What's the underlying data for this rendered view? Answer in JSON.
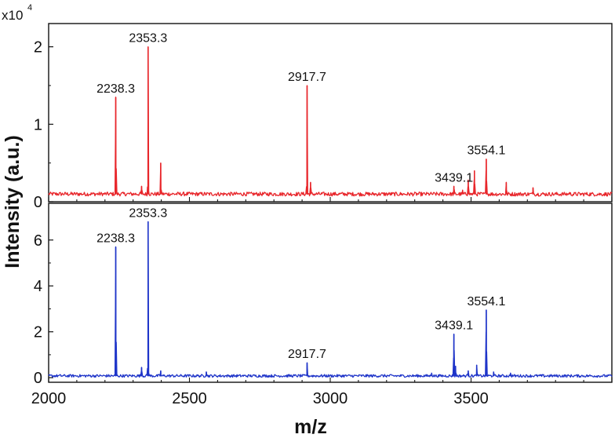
{
  "chart_data": {
    "type": "line",
    "xlabel": "m/z",
    "ylabel": "Intensity (a.u.)",
    "y_multiplier": {
      "base": "x10",
      "exponent": "4"
    },
    "xlim": [
      2000,
      4000
    ],
    "x_ticks": [
      2000,
      2500,
      3000,
      3500
    ],
    "x_tick_labels": [
      "2000",
      "2500",
      "3000",
      "3500"
    ],
    "grid": false,
    "panels": [
      {
        "name": "top",
        "color": "#e8262b",
        "ylim": [
          0,
          2.3
        ],
        "y_ticks": [
          0,
          1,
          2
        ],
        "y_tick_labels": [
          "0",
          "1",
          "2"
        ],
        "baseline": 0.1,
        "noise": 0.025,
        "peaks": [
          {
            "x": 2238.3,
            "y": 1.35
          },
          {
            "x": 2353.3,
            "y": 2.0
          },
          {
            "x": 2330,
            "y": 0.2
          },
          {
            "x": 2398,
            "y": 0.5
          },
          {
            "x": 2917.7,
            "y": 1.5
          },
          {
            "x": 2930,
            "y": 0.25
          },
          {
            "x": 3439.1,
            "y": 0.2
          },
          {
            "x": 3470,
            "y": 0.15
          },
          {
            "x": 3490,
            "y": 0.28
          },
          {
            "x": 3512,
            "y": 0.4
          },
          {
            "x": 3554.1,
            "y": 0.55
          },
          {
            "x": 3625,
            "y": 0.25
          },
          {
            "x": 3720,
            "y": 0.18
          },
          {
            "x": 3850,
            "y": 0.12
          }
        ],
        "labels": [
          {
            "x": 2238.3,
            "text": "2238.3",
            "y": 1.35
          },
          {
            "x": 2353.3,
            "text": "2353.3",
            "y": 2.0
          },
          {
            "x": 2917.7,
            "text": "2917.7",
            "y": 1.5
          },
          {
            "x": 3439.1,
            "text": "3439.1",
            "y": 0.2
          },
          {
            "x": 3554.1,
            "text": "3554.1",
            "y": 0.55
          }
        ]
      },
      {
        "name": "bottom",
        "color": "#1f35c9",
        "ylim": [
          -0.2,
          7.6
        ],
        "y_ticks": [
          0,
          2,
          4,
          6
        ],
        "y_tick_labels": [
          "0",
          "2",
          "4",
          "6"
        ],
        "baseline": 0.08,
        "noise": 0.06,
        "peaks": [
          {
            "x": 2238.3,
            "y": 5.7
          },
          {
            "x": 2353.3,
            "y": 6.8
          },
          {
            "x": 2330,
            "y": 0.45
          },
          {
            "x": 2398,
            "y": 0.3
          },
          {
            "x": 2560,
            "y": 0.25
          },
          {
            "x": 2917.7,
            "y": 0.65
          },
          {
            "x": 3360,
            "y": 0.2
          },
          {
            "x": 3439.1,
            "y": 1.9
          },
          {
            "x": 3445,
            "y": 0.5
          },
          {
            "x": 3490,
            "y": 0.3
          },
          {
            "x": 3520,
            "y": 0.55
          },
          {
            "x": 3554.1,
            "y": 2.95
          },
          {
            "x": 3580,
            "y": 0.25
          },
          {
            "x": 3640,
            "y": 0.2
          }
        ],
        "labels": [
          {
            "x": 2238.3,
            "text": "2238.3",
            "y": 5.7
          },
          {
            "x": 2353.3,
            "text": "2353.3",
            "y": 6.8
          },
          {
            "x": 2917.7,
            "text": "2917.7",
            "y": 0.65
          },
          {
            "x": 3439.1,
            "text": "3439.1",
            "y": 1.9
          },
          {
            "x": 3554.1,
            "text": "3554.1",
            "y": 2.95
          }
        ]
      }
    ]
  }
}
